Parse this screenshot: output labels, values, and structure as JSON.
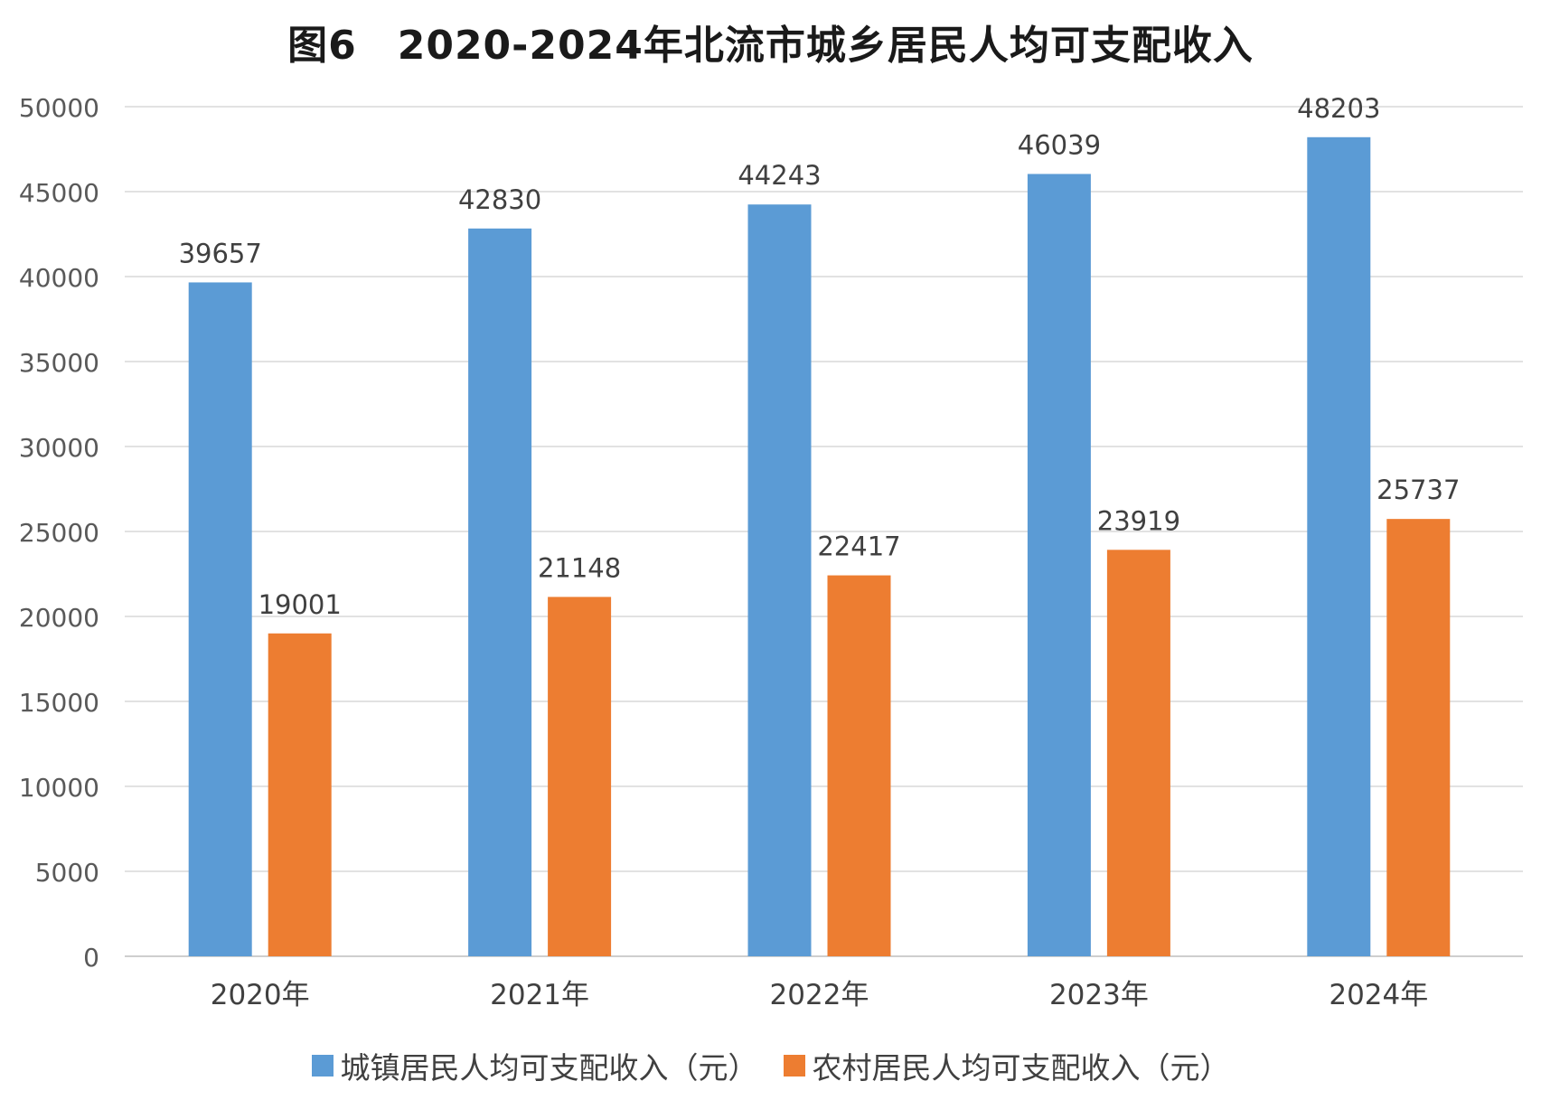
{
  "chart_data": {
    "type": "bar",
    "title": "图6　2020-2024年北流市城乡居民人均可支配收入",
    "categories": [
      "2020年",
      "2021年",
      "2022年",
      "2023年",
      "2024年"
    ],
    "series": [
      {
        "name": "城镇居民人均可支配收入（元）",
        "color": "#5b9bd5",
        "values": [
          39657,
          42830,
          44243,
          46039,
          48203
        ]
      },
      {
        "name": "农村居民人均可支配收入（元）",
        "color": "#ed7d31",
        "values": [
          19001,
          21148,
          22417,
          23919,
          25737
        ]
      }
    ],
    "ylim": [
      0,
      50000
    ],
    "yticks": [
      "0",
      "5000",
      "10000",
      "15000",
      "20000",
      "25000",
      "30000",
      "35000",
      "40000",
      "45000",
      "50000"
    ],
    "grid": true,
    "legend_position": "bottom",
    "data_labels": true
  }
}
